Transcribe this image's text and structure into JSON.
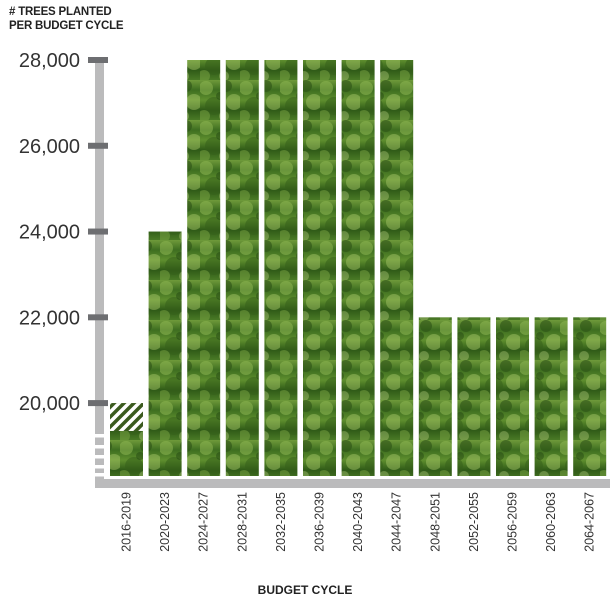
{
  "chart_data": {
    "type": "bar",
    "title": "",
    "ylabel_lines": [
      "# TREES PLANTED",
      "PER BUDGET CYCLE"
    ],
    "xlabel": "BUDGET CYCLE",
    "categories": [
      "2016-2019",
      "2020-2023",
      "2024-2027",
      "2028-2031",
      "2032-2035",
      "2036-2039",
      "2040-2043",
      "2044-2047",
      "2048-2051",
      "2052-2055",
      "2056-2059",
      "2060-2063",
      "2064-2067"
    ],
    "values": [
      20000,
      24000,
      28000,
      28000,
      28000,
      28000,
      28000,
      28000,
      22000,
      22000,
      22000,
      22000,
      22000
    ],
    "y_ticks": [
      "20,000",
      "22,000",
      "24,000",
      "26,000",
      "28,000"
    ],
    "y_tick_values": [
      20000,
      22000,
      24000,
      26000,
      28000
    ],
    "ylim": [
      18300,
      28000
    ],
    "grid": false,
    "legend": "none",
    "bar_fill": "forest canopy photo texture",
    "hatched_top": {
      "category": "2016-2019",
      "from": 19350,
      "to": 20000
    },
    "colors": {
      "axis": "#bbbbbc",
      "tick": "#6d6e71",
      "hatch": "#3a5a1e",
      "canopy_dark": "#2f5a17",
      "canopy_light": "#a8c76a"
    }
  }
}
